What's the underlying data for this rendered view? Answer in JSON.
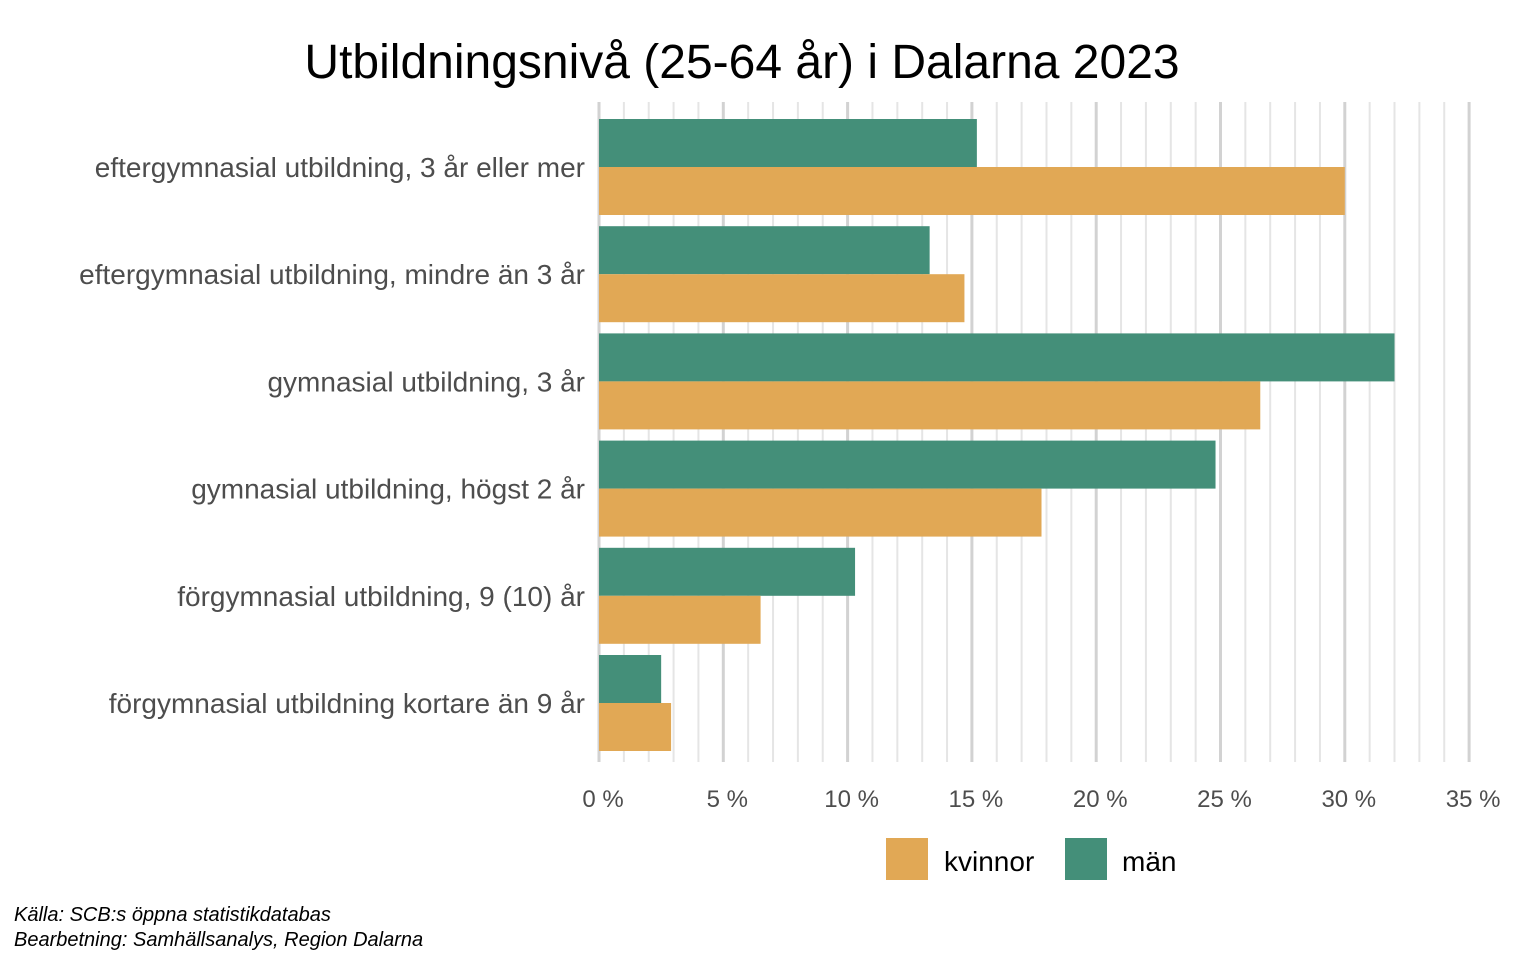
{
  "colors": {
    "kvinnor": "#e1a855",
    "man": "#448f79",
    "grid_major": "#d2d2d2",
    "grid_minor": "#e5e5e5",
    "text_axis": "#4d4d4d"
  },
  "chart_data": {
    "type": "bar",
    "orientation": "horizontal",
    "title": "Utbildningsnivå (25-64 år) i Dalarna 2023",
    "xlabel": "",
    "ylabel": "",
    "xlim": [
      0,
      35
    ],
    "x_ticks": [
      0,
      5,
      10,
      15,
      20,
      25,
      30,
      35
    ],
    "x_tick_labels": [
      "0 %",
      "5 %",
      "10 %",
      "15 %",
      "20 %",
      "25 %",
      "30 %",
      "35 %"
    ],
    "grid": "vertical",
    "legend_position": "bottom",
    "categories": [
      "eftergymnasial utbildning, 3 år eller mer",
      "eftergymnasial utbildning, mindre än 3 år",
      "gymnasial utbildning, 3 år",
      "gymnasial utbildning, högst 2 år",
      "förgymnasial utbildning, 9 (10) år",
      "förgymnasial utbildning kortare än 9 år"
    ],
    "series": [
      {
        "name": "kvinnor",
        "values": [
          30.0,
          14.7,
          26.6,
          17.8,
          6.5,
          2.9
        ]
      },
      {
        "name": "män",
        "values": [
          15.2,
          13.3,
          32.0,
          24.8,
          10.3,
          2.5
        ]
      }
    ]
  },
  "legend": {
    "items": [
      "kvinnor",
      "män"
    ]
  },
  "caption": {
    "line1": "Källa: SCB:s öppna statistikdatabas",
    "line2": "Bearbetning: Samhällsanalys, Region Dalarna"
  }
}
